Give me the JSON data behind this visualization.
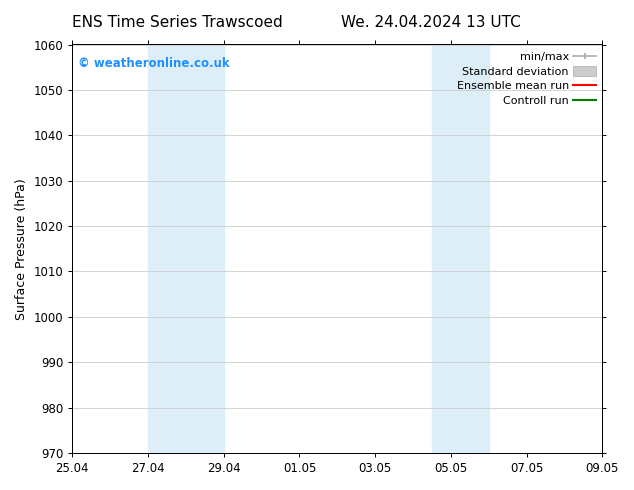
{
  "title_left": "ENS Time Series Trawscoed",
  "title_right": "We. 24.04.2024 13 UTC",
  "ylabel": "Surface Pressure (hPa)",
  "ylim": [
    970,
    1060
  ],
  "yticks": [
    970,
    980,
    990,
    1000,
    1010,
    1020,
    1030,
    1040,
    1050,
    1060
  ],
  "xtick_labels": [
    "25.04",
    "27.04",
    "29.04",
    "01.05",
    "03.05",
    "05.05",
    "07.05",
    "09.05"
  ],
  "xtick_positions": [
    0,
    2,
    4,
    6,
    8,
    10,
    12,
    14
  ],
  "shaded_bands": [
    {
      "x_start": 2,
      "x_end": 4,
      "color": "#ddeef8"
    },
    {
      "x_start": 9.5,
      "x_end": 11,
      "color": "#ddeef8"
    }
  ],
  "watermark_text": "© weatheronline.co.uk",
  "watermark_color": "#1e90ff",
  "legend_labels": [
    "min/max",
    "Standard deviation",
    "Ensemble mean run",
    "Controll run"
  ],
  "legend_colors": [
    "#aaaaaa",
    "#cccccc",
    "red",
    "green"
  ],
  "background_color": "#ffffff",
  "grid_color": "#cccccc",
  "title_fontsize": 11,
  "ylabel_fontsize": 9,
  "tick_fontsize": 8.5,
  "legend_fontsize": 8
}
